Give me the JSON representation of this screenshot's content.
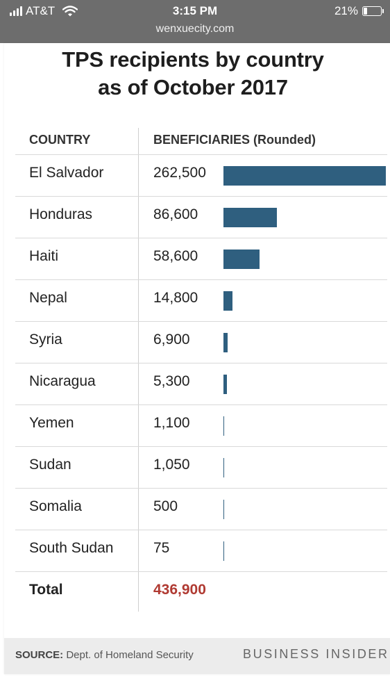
{
  "status_bar": {
    "carrier": "AT&T",
    "time": "3:15 PM",
    "url": "wenxuecity.com",
    "battery_percent": "21%",
    "battery_level": 0.21
  },
  "chart_data": {
    "type": "bar",
    "title": "TPS recipients by country\nas of October 2017",
    "columns": [
      "COUNTRY",
      "BENEFICIARIES (Rounded)"
    ],
    "categories": [
      "El Salvador",
      "Honduras",
      "Haiti",
      "Nepal",
      "Syria",
      "Nicaragua",
      "Yemen",
      "Sudan",
      "Somalia",
      "South Sudan"
    ],
    "values": [
      262500,
      86600,
      58600,
      14800,
      6900,
      5300,
      1100,
      1050,
      500,
      75
    ],
    "value_labels": [
      "262,500",
      "86,600",
      "58,600",
      "14,800",
      "6,900",
      "5,300",
      "1,100",
      "1,050",
      "500",
      "75"
    ],
    "bar_color": "#2f5f7f",
    "total": {
      "label": "Total",
      "value": 436900,
      "value_label": "436,900",
      "color": "#b03a32"
    }
  },
  "footer": {
    "source_label": "SOURCE:",
    "source_text": "Dept. of Homeland Security",
    "brand": "BUSINESS INSIDER"
  }
}
